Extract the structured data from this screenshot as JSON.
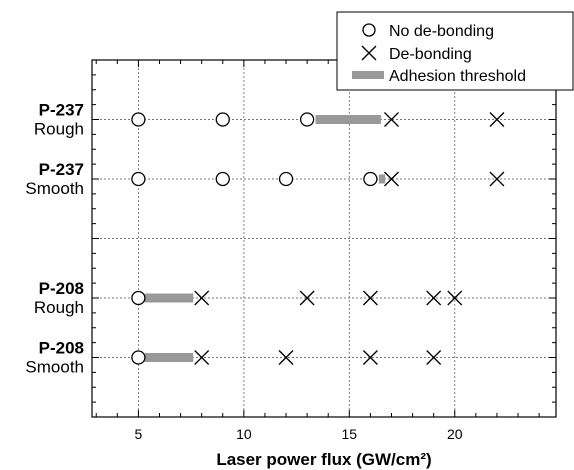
{
  "chart_data": {
    "type": "scatter",
    "xlabel": "Laser power flux (GW/cm²)",
    "xlim": [
      2.8,
      24.8
    ],
    "xticks": [
      "5",
      "10",
      "15",
      "20"
    ],
    "grid": true,
    "legend_placement": "top-right",
    "legend": {
      "no_debond": "No de-bonding",
      "debond": "De-bonding",
      "threshold": "Adhesion threshold"
    },
    "colors": {
      "threshold": "#999999",
      "grid": "#777777",
      "marker": "#000000"
    },
    "categories": [
      {
        "label_bold": "P-237",
        "label_plain": "Rough",
        "y": 5,
        "no_debonding": [
          5,
          9,
          13
        ],
        "debonding": [
          17,
          22
        ],
        "threshold": [
          13.4,
          16.5
        ]
      },
      {
        "label_bold": "P-237",
        "label_plain": "Smooth",
        "y": 4,
        "no_debonding": [
          5,
          9,
          12,
          16
        ],
        "debonding": [
          17,
          22
        ],
        "threshold": [
          16.4,
          16.7
        ]
      },
      {
        "label_bold": "P-208",
        "label_plain": "Rough",
        "y": 2,
        "no_debonding": [
          5
        ],
        "debonding": [
          8,
          13,
          16,
          19,
          20
        ],
        "threshold": [
          5.3,
          7.6
        ]
      },
      {
        "label_bold": "P-208",
        "label_plain": "Smooth",
        "y": 1,
        "no_debonding": [
          5
        ],
        "debonding": [
          8,
          12,
          16,
          19
        ],
        "threshold": [
          5.3,
          7.6
        ]
      }
    ],
    "ylim": [
      0,
      6
    ],
    "separator_y": 3
  }
}
